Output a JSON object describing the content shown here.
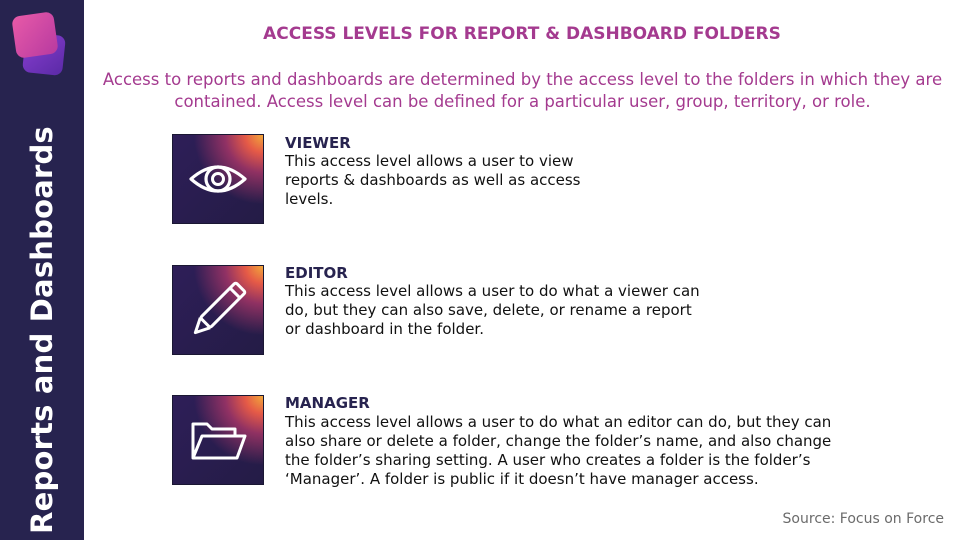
{
  "sidebar": {
    "title": "Reports and Dashboards"
  },
  "header": {
    "title": "ACCESS LEVELS FOR REPORT & DASHBOARD FOLDERS",
    "intro": "Access to reports and dashboards are determined by the access level to the folders in which they are contained. Access level can be defined for a particular user, group, territory, or role."
  },
  "levels": [
    {
      "icon": "eye-icon",
      "name": "VIEWER",
      "description": "This access level allows a user to view reports & dashboards as well as access levels."
    },
    {
      "icon": "pencil-icon",
      "name": "EDITOR",
      "description": "This access level allows a user to do what a viewer can do, but they can also save, delete, or rename a report or dashboard in the folder."
    },
    {
      "icon": "folder-open-icon",
      "name": "MANAGER",
      "description": "This access level allows a user to do what an editor can do, but they can also share or delete a folder, change the folder’s name, and also change the folder’s sharing setting. A user who creates a folder is the folder’s ‘Manager’. A folder is public if it doesn’t have manager access."
    }
  ],
  "footer": {
    "source": "Source: Focus on Force"
  },
  "colors": {
    "sidebar": "#27234f",
    "accent": "#a43a8f",
    "heading": "#27234f"
  }
}
